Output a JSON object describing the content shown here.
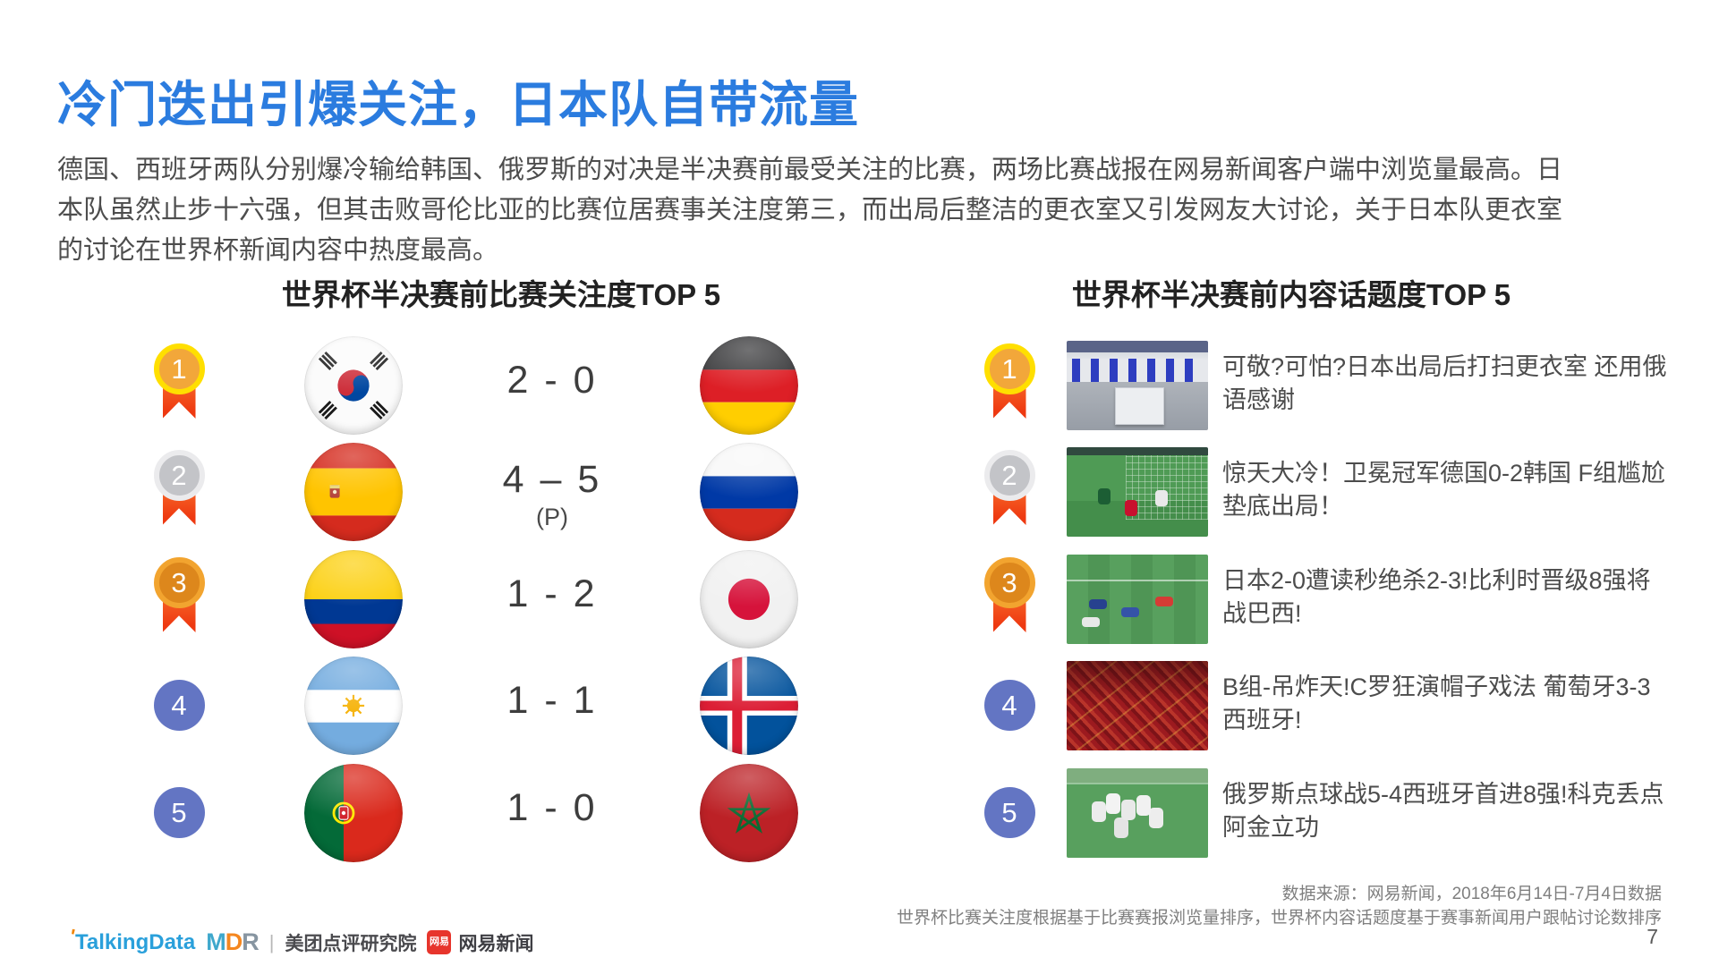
{
  "title": "冷门迭出引爆关注，日本队自带流量",
  "body_lines": [
    "德国、西班牙两队分别爆冷输给韩国、俄罗斯的对决是半决赛前最受关注的比赛，两场比赛战报在网易新闻客户端中浏览量最高。日",
    "本队虽然止步十六强，但其击败哥伦比亚的比赛位居赛事关注度第三，而出局后整洁的更衣室又引发网友大讨论，关于日本队更衣室",
    "的讨论在世界杯新闻内容中热度最高。"
  ],
  "left_panel": {
    "header": "世界杯半决赛前比赛关注度TOP 5",
    "rows": [
      {
        "rank": "1",
        "left_flag": "south-korea",
        "score": "2 - 0",
        "score_note": "",
        "right_flag": "germany"
      },
      {
        "rank": "2",
        "left_flag": "spain",
        "score": "4 – 5",
        "score_note": "(P)",
        "right_flag": "russia"
      },
      {
        "rank": "3",
        "left_flag": "colombia",
        "score": "1 - 2",
        "score_note": "",
        "right_flag": "japan"
      },
      {
        "rank": "4",
        "left_flag": "argentina",
        "score": "1 - 1",
        "score_note": "",
        "right_flag": "iceland"
      },
      {
        "rank": "5",
        "left_flag": "portugal",
        "score": "1 - 0",
        "score_note": "",
        "right_flag": "morocco"
      }
    ]
  },
  "right_panel": {
    "header": "世界杯半决赛前内容话题度TOP 5",
    "rows": [
      {
        "rank": "1",
        "thumbnail": "locker-room",
        "headline": "可敬?可怕?日本出局后打扫更衣室 还用俄语感谢"
      },
      {
        "rank": "2",
        "thumbnail": "germany-korea-goal",
        "headline": "惊天大冷！卫冕冠军德国0-2韩国 F组尴尬垫底出局！"
      },
      {
        "rank": "3",
        "thumbnail": "japan-belgium-match",
        "headline": "日本2-0遭读秒绝杀2-3!比利时晋级8强将战巴西!"
      },
      {
        "rank": "4",
        "thumbnail": "portugal-spain-fans",
        "headline": "B组-吊炸天!C罗狂演帽子戏法 葡萄牙3-3西班牙!"
      },
      {
        "rank": "5",
        "thumbnail": "russia-celebration",
        "headline": "俄罗斯点球战5-4西班牙首进8强!科克丢点阿金立功"
      }
    ]
  },
  "footer": {
    "source_line1": "数据来源：网易新闻，2018年6月14日-7月4日数据",
    "source_line2": "世界杯比赛关注度根据基于比赛赛报浏览量排序，世界杯内容话题度基于赛事新闻用户跟帖讨论数排序",
    "page_number": "7",
    "logos": {
      "talkingdata": "TalkingData",
      "mdr_m": "M",
      "mdr_d": "D",
      "mdr_r": "R",
      "divider": "|",
      "meituan": "美团点评研究院",
      "netease_badge": "网易",
      "netease": "网易新闻"
    }
  },
  "colors": {
    "title_blue": "#2b7cdf",
    "medal_gold_ring": "#ffdf00",
    "medal_gold_face": "#f2a73a",
    "medal_silver_ring": "#ebebed",
    "medal_silver_face": "#c3c4c8",
    "medal_bronze_ring": "#f2a42f",
    "medal_bronze_face": "#dd871c",
    "ribbon_red": "#ee3911",
    "rank_circle_blue": "#6375c3"
  }
}
